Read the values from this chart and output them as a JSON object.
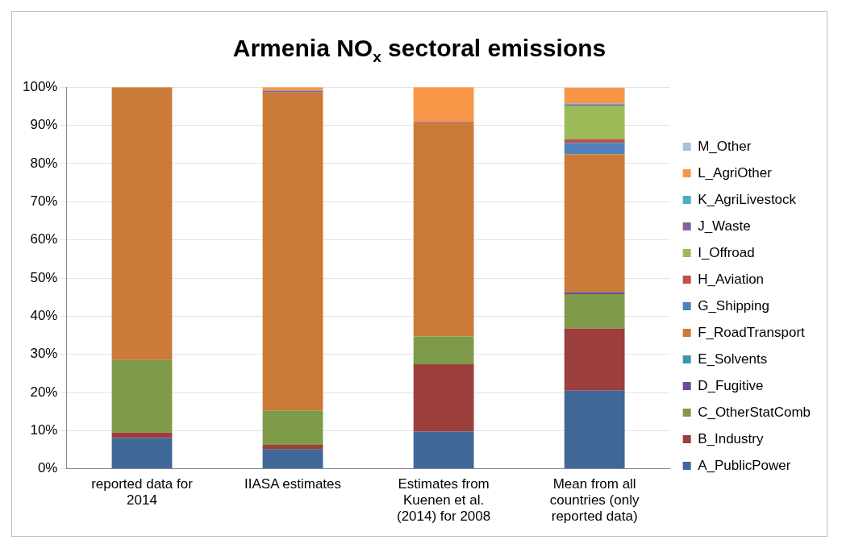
{
  "chart_data": {
    "type": "bar",
    "stacked": true,
    "title": "Armenia NO$_{x}$ sectoral emissions",
    "categories": [
      "reported data for 2014",
      "IIASA estimates",
      "Estimates from Kuenen et al. (2014) for 2008",
      "Mean from all countries (only reported data)"
    ],
    "series": [
      {
        "name": "A_PublicPower",
        "color": "#3f6797",
        "values": [
          8.1,
          5.1,
          9.8,
          20.5
        ]
      },
      {
        "name": "B_Industry",
        "color": "#9c3f3c",
        "values": [
          1.4,
          1.2,
          17.6,
          16.3
        ]
      },
      {
        "name": "C_OtherStatComb",
        "color": "#7f9a48",
        "values": [
          19.0,
          9.0,
          7.3,
          9.0
        ]
      },
      {
        "name": "D_Fugitive",
        "color": "#6a4c93",
        "values": [
          0,
          0,
          0,
          0.5
        ]
      },
      {
        "name": "E_Solvents",
        "color": "#3b97ad",
        "values": [
          0,
          0,
          0,
          0
        ]
      },
      {
        "name": "F_RoadTransport",
        "color": "#cb7a37",
        "values": [
          71.5,
          83.3,
          56.1,
          36.1
        ]
      },
      {
        "name": "G_Shipping",
        "color": "#4f81bd",
        "values": [
          0,
          0,
          0,
          3.0
        ]
      },
      {
        "name": "H_Aviation",
        "color": "#c0504d",
        "values": [
          0,
          0,
          0,
          0.9
        ]
      },
      {
        "name": "I_Offroad",
        "color": "#9bbb59",
        "values": [
          0,
          0,
          0,
          8.9
        ]
      },
      {
        "name": "J_Waste",
        "color": "#8064a2",
        "values": [
          0,
          0.5,
          0.2,
          0.3
        ]
      },
      {
        "name": "K_AgriLivestock",
        "color": "#4bacc6",
        "values": [
          0,
          0,
          0,
          0.2
        ]
      },
      {
        "name": "L_AgriOther",
        "color": "#f79646",
        "values": [
          0,
          0.9,
          9.0,
          4.2
        ]
      },
      {
        "name": "M_Other",
        "color": "#a9bfe0",
        "values": [
          0,
          0,
          0,
          null
        ]
      }
    ],
    "ylim": [
      0,
      100
    ],
    "yticks": [
      {
        "value": 0,
        "label": "0%"
      },
      {
        "value": 10,
        "label": "10%"
      },
      {
        "value": 20,
        "label": "20%"
      },
      {
        "value": 30,
        "label": "30%"
      },
      {
        "value": 40,
        "label": "40%"
      },
      {
        "value": 50,
        "label": "50%"
      },
      {
        "value": 60,
        "label": "60%"
      },
      {
        "value": 70,
        "label": "70%"
      },
      {
        "value": 80,
        "label": "80%"
      },
      {
        "value": 90,
        "label": "90%"
      },
      {
        "value": 100,
        "label": "100%"
      }
    ],
    "grid": "y",
    "legend": "right"
  }
}
